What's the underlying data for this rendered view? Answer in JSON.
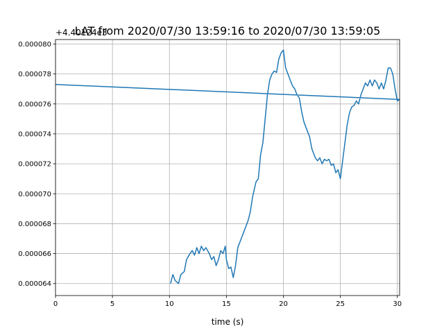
{
  "chart_data": {
    "type": "line",
    "title": "LAT from 2020/07/30 13:59:16 to 2020/07/30 13:59:05",
    "offset_label": "+4.40124e3",
    "x_label": "time (s)",
    "xlim": [
      0,
      30.2
    ],
    "xticks": [
      0,
      5,
      10,
      15,
      20,
      25,
      30
    ],
    "ylim": [
      6.32e-05,
      8.03e-05
    ],
    "yticks": [
      {
        "value": 6.4e-05,
        "label": "0.000064"
      },
      {
        "value": 6.6e-05,
        "label": "0.000066"
      },
      {
        "value": 6.8e-05,
        "label": "0.000068"
      },
      {
        "value": 7e-05,
        "label": "0.000070"
      },
      {
        "value": 7.2e-05,
        "label": "0.000072"
      },
      {
        "value": 7.4e-05,
        "label": "0.000074"
      },
      {
        "value": 7.6e-05,
        "label": "0.000076"
      },
      {
        "value": 7.8e-05,
        "label": "0.000078"
      },
      {
        "value": 8e-05,
        "label": "0.000080"
      }
    ],
    "grid": true,
    "series": [
      {
        "color": "#1f77b4",
        "x": [
          10.1,
          10.3,
          10.5,
          10.8,
          11.0,
          11.3,
          11.5,
          11.8,
          12.0,
          12.2,
          12.4,
          12.6,
          12.8,
          13.0,
          13.2,
          13.5,
          13.7,
          13.9,
          14.1,
          14.3,
          14.5,
          14.7,
          14.9,
          15.0,
          15.2,
          15.4,
          15.6,
          15.8,
          16.0,
          16.3,
          16.6,
          16.9,
          17.1,
          17.3,
          17.6,
          17.8,
          18.0,
          18.2,
          18.4,
          18.6,
          18.8,
          19.0,
          19.2,
          19.4,
          19.6,
          19.8,
          20.0,
          20.2,
          20.4,
          20.6,
          20.8,
          21.0,
          21.2,
          21.4,
          21.6,
          21.8,
          22.0,
          22.3,
          22.5,
          22.8,
          23.0,
          23.2,
          23.4,
          23.6,
          23.8,
          24.0,
          24.2,
          24.4,
          24.6,
          24.8,
          25.0,
          25.2,
          25.4,
          25.6,
          25.8,
          26.0,
          26.2,
          26.4,
          26.6,
          26.8,
          27.0,
          27.2,
          27.4,
          27.6,
          27.8,
          28.0,
          28.2,
          28.4,
          28.6,
          28.8,
          29.0,
          29.2,
          29.4,
          29.6,
          29.8,
          30.0,
          30.2,
          0
        ],
        "values": [
          6.4e-05,
          6.46e-05,
          6.42e-05,
          6.4e-05,
          6.46e-05,
          6.48e-05,
          6.56e-05,
          6.6e-05,
          6.62e-05,
          6.59e-05,
          6.64e-05,
          6.6e-05,
          6.65e-05,
          6.62e-05,
          6.64e-05,
          6.6e-05,
          6.56e-05,
          6.58e-05,
          6.52e-05,
          6.56e-05,
          6.62e-05,
          6.6e-05,
          6.65e-05,
          6.56e-05,
          6.5e-05,
          6.51e-05,
          6.44e-05,
          6.52e-05,
          6.64e-05,
          6.7e-05,
          6.76e-05,
          6.82e-05,
          6.88e-05,
          6.98e-05,
          7.08e-05,
          7.1e-05,
          7.26e-05,
          7.34e-05,
          7.5e-05,
          7.66e-05,
          7.76e-05,
          7.8e-05,
          7.82e-05,
          7.81e-05,
          7.9e-05,
          7.94e-05,
          7.96e-05,
          7.84e-05,
          7.8e-05,
          7.76e-05,
          7.72e-05,
          7.7e-05,
          7.66e-05,
          7.64e-05,
          7.55e-05,
          7.48e-05,
          7.44e-05,
          7.38e-05,
          7.3e-05,
          7.24e-05,
          7.22e-05,
          7.24e-05,
          7.2e-05,
          7.23e-05,
          7.22e-05,
          7.23e-05,
          7.19e-05,
          7.2e-05,
          7.14e-05,
          7.16e-05,
          7.1e-05,
          7.22e-05,
          7.34e-05,
          7.46e-05,
          7.54e-05,
          7.58e-05,
          7.59e-05,
          7.62e-05,
          7.6e-05,
          7.66e-05,
          7.7e-05,
          7.74e-05,
          7.72e-05,
          7.76e-05,
          7.72e-05,
          7.76e-05,
          7.74e-05,
          7.7e-05,
          7.74e-05,
          7.7e-05,
          7.76e-05,
          7.84e-05,
          7.84e-05,
          7.8e-05,
          7.7e-05,
          7.62e-05,
          7.63e-05,
          7.73e-05
        ]
      }
    ]
  }
}
